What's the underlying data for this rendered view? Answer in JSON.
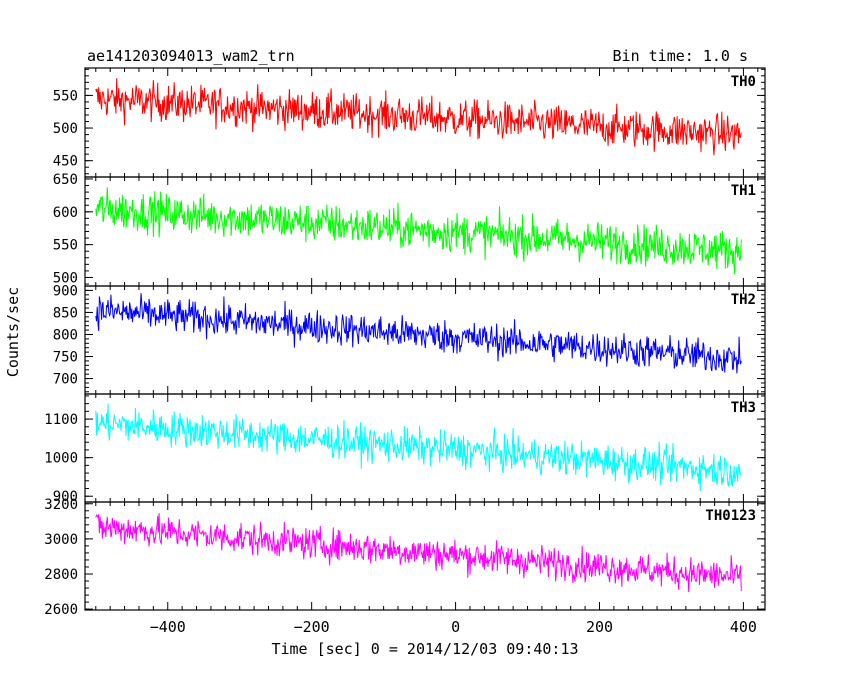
{
  "header": {
    "title": "ae141203094013_wam2_trn",
    "bin_time": "Bin time: 1.0 s"
  },
  "chart_data": {
    "type": "line",
    "xlabel": "Time [sec] 0 = 2014/12/03 09:40:13",
    "ylabel": "Counts/sec",
    "xlim": [
      -515,
      430
    ],
    "x_ticks": [
      -400,
      -200,
      0,
      200,
      400
    ],
    "x_tick_labels": [
      "−400",
      "−200",
      "0",
      "200",
      "400"
    ],
    "x_range": [
      -500,
      397
    ],
    "panels": [
      {
        "name": "TH0",
        "color": "#ff0000",
        "ylim": [
          425,
          592
        ],
        "ticks": [
          450,
          500,
          550
        ],
        "tick_labels": [
          "450",
          "500",
          "550"
        ],
        "trend": [
          545,
          490
        ],
        "noise": 58
      },
      {
        "name": "TH1",
        "color": "#00ff00",
        "ylim": [
          487,
          653
        ],
        "ticks": [
          500,
          550,
          600,
          650
        ],
        "tick_labels": [
          "500",
          "550",
          "600",
          "650"
        ],
        "trend": [
          605,
          540
        ],
        "noise": 60
      },
      {
        "name": "TH2",
        "color": "#0000ff",
        "ylim": [
          665,
          910
        ],
        "ticks": [
          700,
          750,
          800,
          850,
          900
        ],
        "tick_labels": [
          "700",
          "750",
          "800",
          "850",
          "900"
        ],
        "trend": [
          855,
          745
        ],
        "noise": 75
      },
      {
        "name": "TH3",
        "color": "#00ffff",
        "ylim": [
          885,
          1165
        ],
        "ticks": [
          900,
          1000,
          1100
        ],
        "tick_labels": [
          "900",
          "1000",
          "1100"
        ],
        "trend": [
          1090,
          965
        ],
        "noise": 90
      },
      {
        "name": "TH0123",
        "color": "#ff00ff",
        "ylim": [
          2595,
          3210
        ],
        "ticks": [
          2600,
          2800,
          3000,
          3200
        ],
        "tick_labels": [
          "2600",
          "2800",
          "3000",
          "3200"
        ],
        "trend": [
          3070,
          2780
        ],
        "noise": 180
      }
    ]
  }
}
